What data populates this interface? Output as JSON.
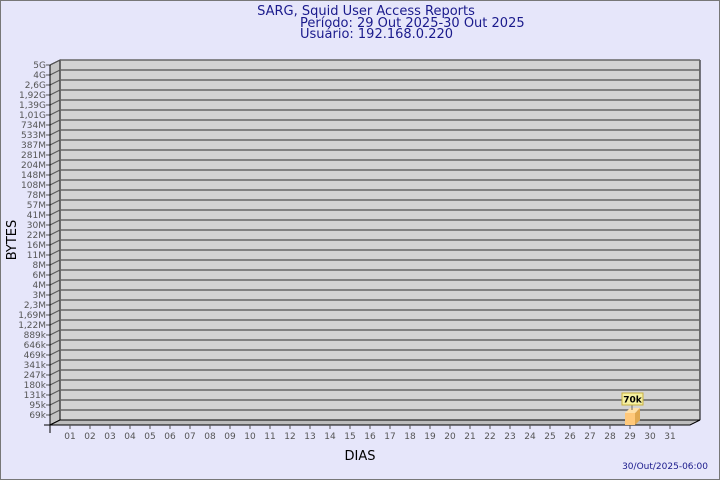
{
  "chart_data": {
    "type": "bar",
    "title": "SARG, Squid User Access Reports",
    "subtitle_period": "Período: 29 Out 2025-30 Out 2025",
    "subtitle_user": "Usuário: 192.168.0.220",
    "xlabel": "DIAS",
    "ylabel": "BYTES",
    "y_scale": "log",
    "grid": true,
    "y_ticks": [
      "5G",
      "4G",
      "2,6G",
      "1,92G",
      "1,39G",
      "1,01G",
      "734M",
      "533M",
      "387M",
      "281M",
      "204M",
      "148M",
      "108M",
      "78M",
      "57M",
      "41M",
      "30M",
      "22M",
      "16M",
      "11M",
      "8M",
      "6M",
      "4M",
      "3M",
      "2,3M",
      "1,69M",
      "1,22M",
      "889k",
      "646k",
      "469k",
      "341k",
      "247k",
      "180k",
      "131k",
      "95k",
      "69k"
    ],
    "categories": [
      "01",
      "02",
      "03",
      "04",
      "05",
      "06",
      "07",
      "08",
      "09",
      "10",
      "11",
      "12",
      "13",
      "14",
      "15",
      "16",
      "17",
      "18",
      "19",
      "20",
      "21",
      "22",
      "23",
      "24",
      "25",
      "26",
      "27",
      "28",
      "29",
      "30",
      "31"
    ],
    "bars": [
      {
        "category": "29",
        "value": 70000,
        "label": "70k"
      }
    ],
    "footer": "30/Out/2025-06:00",
    "colors": {
      "background": "#e6e6fa",
      "plot": "#d3d3d3",
      "bar": "#ffc87a",
      "title": "#1a1a8c",
      "label_box": "#f5f0a0"
    }
  }
}
